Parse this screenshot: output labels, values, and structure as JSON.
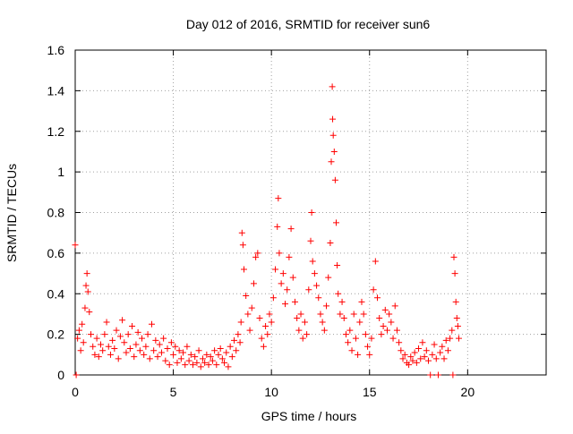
{
  "chart_data": {
    "type": "scatter",
    "title": "Day 012 of 2016, SRMTID for receiver sun6",
    "xlabel": "GPS time / hours",
    "ylabel": "SRMTID / TECUs",
    "xlim": [
      0,
      24
    ],
    "ylim": [
      0,
      1.6
    ],
    "grid": true,
    "x_ticks": [
      0,
      5,
      10,
      15,
      20
    ],
    "x_tick_labels": [
      "0",
      "5",
      "10",
      "15",
      "20"
    ],
    "y_ticks": [
      0,
      0.2,
      0.4,
      0.6,
      0.8,
      1.0,
      1.2,
      1.4,
      1.6
    ],
    "y_tick_labels": [
      "0",
      "0.2",
      "0.4",
      "0.6",
      "0.8",
      "1",
      "1.2",
      "1.4",
      "1.6"
    ],
    "series": [
      {
        "name": "sun6",
        "color": "#ff0000",
        "marker": "plus",
        "points": [
          [
            0.0,
            0.64
          ],
          [
            0.05,
            0.0
          ],
          [
            0.12,
            0.18
          ],
          [
            0.2,
            0.22
          ],
          [
            0.28,
            0.12
          ],
          [
            0.35,
            0.25
          ],
          [
            0.42,
            0.16
          ],
          [
            0.5,
            0.33
          ],
          [
            0.55,
            0.44
          ],
          [
            0.6,
            0.5
          ],
          [
            0.65,
            0.41
          ],
          [
            0.72,
            0.31
          ],
          [
            0.8,
            0.2
          ],
          [
            0.9,
            0.14
          ],
          [
            1.0,
            0.1
          ],
          [
            1.1,
            0.18
          ],
          [
            1.2,
            0.09
          ],
          [
            1.3,
            0.15
          ],
          [
            1.4,
            0.12
          ],
          [
            1.5,
            0.2
          ],
          [
            1.6,
            0.26
          ],
          [
            1.7,
            0.14
          ],
          [
            1.8,
            0.1
          ],
          [
            1.9,
            0.17
          ],
          [
            2.0,
            0.13
          ],
          [
            2.1,
            0.22
          ],
          [
            2.2,
            0.08
          ],
          [
            2.3,
            0.19
          ],
          [
            2.4,
            0.27
          ],
          [
            2.5,
            0.16
          ],
          [
            2.6,
            0.11
          ],
          [
            2.7,
            0.2
          ],
          [
            2.8,
            0.13
          ],
          [
            2.9,
            0.24
          ],
          [
            3.0,
            0.09
          ],
          [
            3.1,
            0.15
          ],
          [
            3.2,
            0.21
          ],
          [
            3.3,
            0.12
          ],
          [
            3.4,
            0.18
          ],
          [
            3.5,
            0.1
          ],
          [
            3.6,
            0.14
          ],
          [
            3.7,
            0.2
          ],
          [
            3.8,
            0.08
          ],
          [
            3.9,
            0.25
          ],
          [
            4.0,
            0.12
          ],
          [
            4.1,
            0.17
          ],
          [
            4.2,
            0.09
          ],
          [
            4.3,
            0.15
          ],
          [
            4.4,
            0.11
          ],
          [
            4.5,
            0.18
          ],
          [
            4.6,
            0.07
          ],
          [
            4.7,
            0.13
          ],
          [
            4.8,
            0.05
          ],
          [
            4.9,
            0.16
          ],
          [
            5.0,
            0.1
          ],
          [
            5.1,
            0.14
          ],
          [
            5.2,
            0.06
          ],
          [
            5.3,
            0.12
          ],
          [
            5.4,
            0.08
          ],
          [
            5.5,
            0.11
          ],
          [
            5.6,
            0.05
          ],
          [
            5.7,
            0.14
          ],
          [
            5.8,
            0.07
          ],
          [
            5.9,
            0.1
          ],
          [
            6.0,
            0.05
          ],
          [
            6.1,
            0.09
          ],
          [
            6.2,
            0.06
          ],
          [
            6.3,
            0.12
          ],
          [
            6.4,
            0.04
          ],
          [
            6.5,
            0.08
          ],
          [
            6.6,
            0.06
          ],
          [
            6.7,
            0.1
          ],
          [
            6.8,
            0.05
          ],
          [
            6.9,
            0.09
          ],
          [
            7.0,
            0.07
          ],
          [
            7.1,
            0.12
          ],
          [
            7.2,
            0.05
          ],
          [
            7.3,
            0.1
          ],
          [
            7.4,
            0.13
          ],
          [
            7.5,
            0.08
          ],
          [
            7.6,
            0.06
          ],
          [
            7.7,
            0.11
          ],
          [
            7.8,
            0.04
          ],
          [
            7.9,
            0.14
          ],
          [
            8.0,
            0.09
          ],
          [
            8.1,
            0.17
          ],
          [
            8.2,
            0.12
          ],
          [
            8.3,
            0.2
          ],
          [
            8.4,
            0.16
          ],
          [
            8.45,
            0.26
          ],
          [
            8.5,
            0.7
          ],
          [
            8.55,
            0.64
          ],
          [
            8.6,
            0.52
          ],
          [
            8.7,
            0.39
          ],
          [
            8.8,
            0.3
          ],
          [
            8.9,
            0.22
          ],
          [
            9.0,
            0.33
          ],
          [
            9.1,
            0.45
          ],
          [
            9.2,
            0.58
          ],
          [
            9.3,
            0.6
          ],
          [
            9.4,
            0.28
          ],
          [
            9.5,
            0.18
          ],
          [
            9.6,
            0.14
          ],
          [
            9.7,
            0.24
          ],
          [
            9.8,
            0.2
          ],
          [
            9.9,
            0.3
          ],
          [
            10.0,
            0.26
          ],
          [
            10.1,
            0.38
          ],
          [
            10.2,
            0.52
          ],
          [
            10.3,
            0.73
          ],
          [
            10.35,
            0.87
          ],
          [
            10.4,
            0.6
          ],
          [
            10.5,
            0.45
          ],
          [
            10.6,
            0.5
          ],
          [
            10.7,
            0.35
          ],
          [
            10.8,
            0.42
          ],
          [
            10.9,
            0.58
          ],
          [
            11.0,
            0.72
          ],
          [
            11.1,
            0.48
          ],
          [
            11.2,
            0.36
          ],
          [
            11.3,
            0.28
          ],
          [
            11.4,
            0.22
          ],
          [
            11.5,
            0.3
          ],
          [
            11.6,
            0.18
          ],
          [
            11.7,
            0.26
          ],
          [
            11.8,
            0.2
          ],
          [
            11.9,
            0.42
          ],
          [
            12.0,
            0.66
          ],
          [
            12.05,
            0.8
          ],
          [
            12.1,
            0.56
          ],
          [
            12.2,
            0.5
          ],
          [
            12.3,
            0.44
          ],
          [
            12.4,
            0.38
          ],
          [
            12.5,
            0.3
          ],
          [
            12.6,
            0.26
          ],
          [
            12.7,
            0.22
          ],
          [
            12.8,
            0.34
          ],
          [
            12.9,
            0.48
          ],
          [
            13.0,
            0.65
          ],
          [
            13.05,
            1.05
          ],
          [
            13.1,
            1.42
          ],
          [
            13.12,
            1.26
          ],
          [
            13.15,
            1.18
          ],
          [
            13.2,
            1.1
          ],
          [
            13.25,
            0.96
          ],
          [
            13.3,
            0.75
          ],
          [
            13.35,
            0.54
          ],
          [
            13.4,
            0.4
          ],
          [
            13.5,
            0.3
          ],
          [
            13.6,
            0.36
          ],
          [
            13.7,
            0.28
          ],
          [
            13.8,
            0.2
          ],
          [
            13.9,
            0.16
          ],
          [
            14.0,
            0.22
          ],
          [
            14.1,
            0.12
          ],
          [
            14.2,
            0.3
          ],
          [
            14.3,
            0.18
          ],
          [
            14.4,
            0.1
          ],
          [
            14.5,
            0.26
          ],
          [
            14.6,
            0.36
          ],
          [
            14.7,
            0.3
          ],
          [
            14.8,
            0.2
          ],
          [
            14.9,
            0.14
          ],
          [
            15.0,
            0.1
          ],
          [
            15.1,
            0.18
          ],
          [
            15.2,
            0.42
          ],
          [
            15.3,
            0.56
          ],
          [
            15.4,
            0.38
          ],
          [
            15.5,
            0.28
          ],
          [
            15.6,
            0.2
          ],
          [
            15.7,
            0.24
          ],
          [
            15.8,
            0.32
          ],
          [
            15.9,
            0.22
          ],
          [
            16.0,
            0.3
          ],
          [
            16.1,
            0.26
          ],
          [
            16.2,
            0.18
          ],
          [
            16.3,
            0.34
          ],
          [
            16.4,
            0.22
          ],
          [
            16.5,
            0.16
          ],
          [
            16.6,
            0.12
          ],
          [
            16.7,
            0.08
          ],
          [
            16.8,
            0.1
          ],
          [
            16.9,
            0.06
          ],
          [
            17.0,
            0.05
          ],
          [
            17.1,
            0.09
          ],
          [
            17.2,
            0.07
          ],
          [
            17.3,
            0.11
          ],
          [
            17.4,
            0.06
          ],
          [
            17.5,
            0.13
          ],
          [
            17.6,
            0.08
          ],
          [
            17.7,
            0.16
          ],
          [
            17.8,
            0.09
          ],
          [
            17.9,
            0.12
          ],
          [
            18.0,
            0.07
          ],
          [
            18.1,
            0.0
          ],
          [
            18.2,
            0.1
          ],
          [
            18.3,
            0.15
          ],
          [
            18.4,
            0.08
          ],
          [
            18.5,
            0.0
          ],
          [
            18.6,
            0.11
          ],
          [
            18.7,
            0.14
          ],
          [
            18.8,
            0.08
          ],
          [
            18.9,
            0.17
          ],
          [
            19.0,
            0.12
          ],
          [
            19.1,
            0.18
          ],
          [
            19.2,
            0.22
          ],
          [
            19.25,
            0.0
          ],
          [
            19.3,
            0.58
          ],
          [
            19.35,
            0.5
          ],
          [
            19.4,
            0.36
          ],
          [
            19.45,
            0.28
          ],
          [
            19.5,
            0.24
          ],
          [
            19.55,
            0.18
          ]
        ]
      }
    ]
  }
}
